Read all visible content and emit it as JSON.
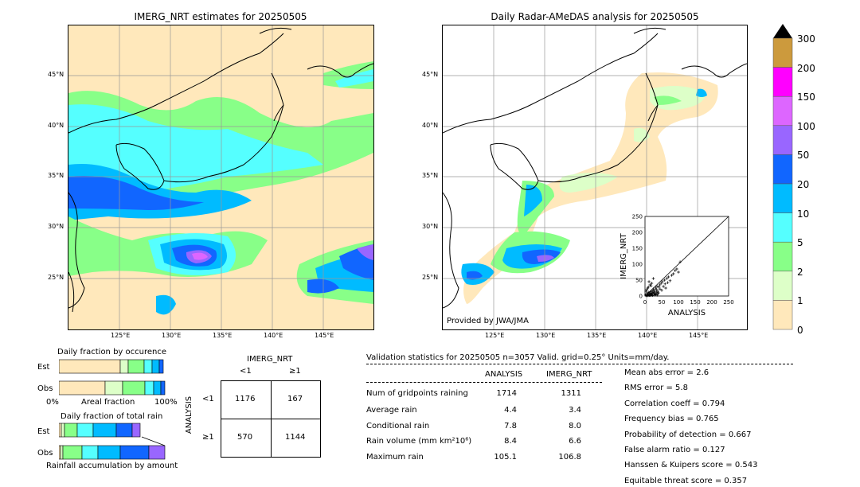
{
  "left_map": {
    "title": "IMERG_NRT estimates for 20250505"
  },
  "right_map": {
    "title": "Daily Radar-AMeDAS analysis for 20250505",
    "credit": "Provided by JWA/JMA"
  },
  "lat_labels": [
    "45°N",
    "40°N",
    "35°N",
    "30°N",
    "25°N"
  ],
  "lon_labels": [
    "125°E",
    "130°E",
    "135°E",
    "140°E",
    "145°E"
  ],
  "colorbar": {
    "labels": [
      "300",
      "200",
      "150",
      "100",
      "50",
      "20",
      "10",
      "5",
      "2",
      "1",
      "0"
    ],
    "colors": [
      "#cc9a3d",
      "#ff00ff",
      "#dd66ff",
      "#9966ff",
      "#1166ff",
      "#00bbff",
      "#55ffff",
      "#88ff88",
      "#ddffc8",
      "#ffe8bb"
    ]
  },
  "occurrence": {
    "title": "Daily fraction by occurence",
    "rows": [
      "Est",
      "Obs"
    ],
    "xlabel": "Areal fraction",
    "xmin": "0%",
    "xmax": "100%"
  },
  "total_rain": {
    "title": "Daily fraction of total rain",
    "rows": [
      "Est",
      "Obs"
    ],
    "xlabel": "Rainfall accumulation by amount"
  },
  "contingency": {
    "col_title": "IMERG_NRT",
    "col_labels": [
      "<1",
      "≥1"
    ],
    "row_title": "ANALYSIS",
    "row_labels": [
      "<1",
      "≥1"
    ],
    "cells": [
      [
        "1176",
        "167"
      ],
      [
        "570",
        "1144"
      ]
    ]
  },
  "validation": {
    "header": "Validation statistics for 20250505  n=3057 Valid. grid=0.25° Units=mm/day.",
    "col_analysis": "ANALYSIS",
    "col_imerg": "IMERG_NRT",
    "rows": [
      {
        "label": "Num of gridpoints raining",
        "analysis": "1714",
        "imerg": "1311"
      },
      {
        "label": "Average rain",
        "analysis": "4.4",
        "imerg": "3.4"
      },
      {
        "label": "Conditional rain",
        "analysis": "7.8",
        "imerg": "8.0"
      },
      {
        "label": "Rain volume (mm km²10⁶)",
        "analysis": "8.4",
        "imerg": "6.6"
      },
      {
        "label": "Maximum rain",
        "analysis": "105.1",
        "imerg": "106.8"
      }
    ],
    "scores": [
      "Mean abs error =    2.6",
      "RMS error =    5.8",
      "Correlation coeff =  0.794",
      "Frequency bias =  0.765",
      "Probability of detection =  0.667",
      "False alarm ratio =  0.127",
      "Hanssen & Kuipers score =  0.543",
      "Equitable threat score =  0.357"
    ]
  },
  "chart_data": {
    "type": "scatter",
    "xlabel": "ANALYSIS",
    "ylabel": "IMERG_NRT",
    "xlim": [
      0,
      250
    ],
    "ylim": [
      0,
      250
    ],
    "ticks": [
      0,
      50,
      100,
      150,
      200,
      250
    ],
    "points": [
      [
        2,
        3
      ],
      [
        4,
        1
      ],
      [
        6,
        8
      ],
      [
        8,
        5
      ],
      [
        10,
        12
      ],
      [
        12,
        6
      ],
      [
        14,
        10
      ],
      [
        15,
        2
      ],
      [
        17,
        14
      ],
      [
        18,
        9
      ],
      [
        20,
        4
      ],
      [
        22,
        16
      ],
      [
        24,
        11
      ],
      [
        25,
        22
      ],
      [
        27,
        7
      ],
      [
        28,
        18
      ],
      [
        30,
        13
      ],
      [
        32,
        25
      ],
      [
        33,
        5
      ],
      [
        35,
        20
      ],
      [
        36,
        30
      ],
      [
        38,
        15
      ],
      [
        40,
        10
      ],
      [
        42,
        28
      ],
      [
        44,
        35
      ],
      [
        45,
        22
      ],
      [
        48,
        40
      ],
      [
        50,
        18
      ],
      [
        52,
        45
      ],
      [
        55,
        30
      ],
      [
        58,
        50
      ],
      [
        60,
        38
      ],
      [
        62,
        25
      ],
      [
        65,
        55
      ],
      [
        68,
        42
      ],
      [
        70,
        60
      ],
      [
        75,
        48
      ],
      [
        80,
        65
      ],
      [
        85,
        70
      ],
      [
        90,
        80
      ],
      [
        95,
        85
      ],
      [
        100,
        75
      ],
      [
        105,
        107
      ],
      [
        5,
        20
      ],
      [
        10,
        28
      ],
      [
        15,
        35
      ],
      [
        20,
        40
      ],
      [
        8,
        25
      ],
      [
        3,
        15
      ],
      [
        12,
        45
      ],
      [
        25,
        55
      ],
      [
        18,
        32
      ],
      [
        6,
        2
      ],
      [
        9,
        1
      ],
      [
        11,
        3
      ],
      [
        13,
        2
      ],
      [
        16,
        5
      ],
      [
        19,
        3
      ],
      [
        21,
        8
      ],
      [
        23,
        2
      ],
      [
        26,
        10
      ],
      [
        29,
        4
      ],
      [
        31,
        6
      ],
      [
        34,
        12
      ],
      [
        37,
        3
      ],
      [
        39,
        9
      ]
    ]
  }
}
